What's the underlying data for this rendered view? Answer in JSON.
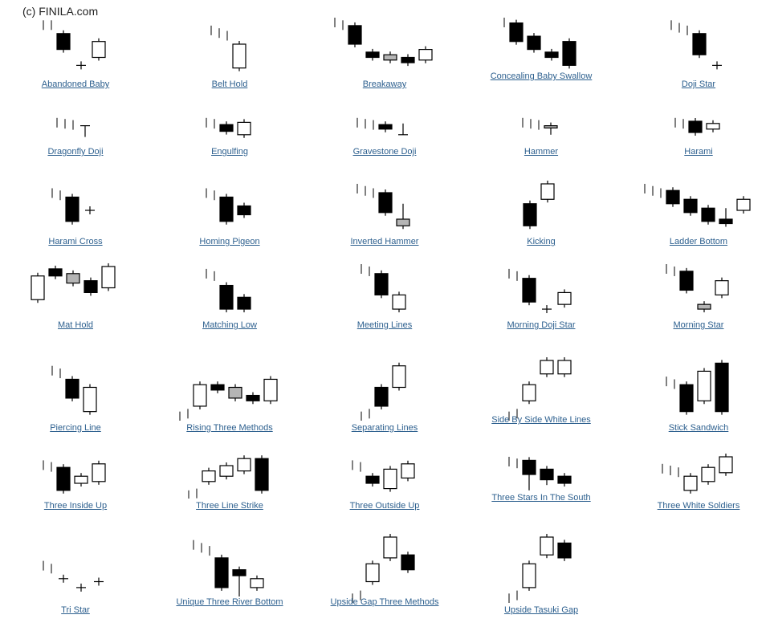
{
  "copyright": "(c) FINILA.com",
  "colors": {
    "bear": "#000000",
    "bull": "#ffffff",
    "neutral": "#b5b5b5",
    "trend": "#555555",
    "link": "#2c5f8e"
  },
  "patterns": [
    {
      "label": "Abandoned Baby",
      "candles": [
        {
          "t": "tick",
          "y": 0.05
        },
        {
          "t": "tick",
          "y": 0.05
        },
        {
          "t": "black",
          "o": 0.3,
          "c": 0.6
        },
        {
          "t": "doji",
          "o": 0.9
        },
        {
          "t": "white",
          "o": 0.75,
          "c": 0.45
        }
      ]
    },
    {
      "label": "Belt Hold",
      "candles": [
        {
          "t": "tick",
          "y": 0.15
        },
        {
          "t": "tick",
          "y": 0.2
        },
        {
          "t": "tick",
          "y": 0.25
        },
        {
          "t": "white",
          "o": 0.95,
          "c": 0.5
        }
      ]
    },
    {
      "label": "Breakaway",
      "candles": [
        {
          "t": "tick",
          "y": 0.0
        },
        {
          "t": "tick",
          "y": 0.05
        },
        {
          "t": "black",
          "o": 0.15,
          "c": 0.5
        },
        {
          "t": "black",
          "o": 0.65,
          "c": 0.75
        },
        {
          "t": "gray",
          "o": 0.7,
          "c": 0.8
        },
        {
          "t": "black",
          "o": 0.75,
          "c": 0.85
        },
        {
          "t": "white",
          "o": 0.8,
          "c": 0.6
        }
      ]
    },
    {
      "label": "Concealing Baby Swallow",
      "candles": [
        {
          "t": "tick",
          "y": 0.0
        },
        {
          "t": "black",
          "o": 0.1,
          "c": 0.45
        },
        {
          "t": "black",
          "o": 0.35,
          "c": 0.6
        },
        {
          "t": "black",
          "o": 0.65,
          "c": 0.75
        },
        {
          "t": "black",
          "o": 0.45,
          "c": 0.9
        }
      ]
    },
    {
      "label": "Doji Star",
      "candles": [
        {
          "t": "tick",
          "y": 0.05
        },
        {
          "t": "tick",
          "y": 0.1
        },
        {
          "t": "tick",
          "y": 0.15
        },
        {
          "t": "black",
          "o": 0.3,
          "c": 0.7
        },
        {
          "t": "doji",
          "o": 0.9
        }
      ]
    },
    {
      "label": "Dragonfly Doji",
      "candles": [
        {
          "t": "tick",
          "y": 0.1
        },
        {
          "t": "tick",
          "y": 0.15
        },
        {
          "t": "tick",
          "y": 0.2
        },
        {
          "t": "dragonfly",
          "o": 0.45
        }
      ]
    },
    {
      "label": "Engulfing",
      "candles": [
        {
          "t": "tick",
          "y": 0.1
        },
        {
          "t": "tick",
          "y": 0.15
        },
        {
          "t": "black",
          "o": 0.4,
          "c": 0.7
        },
        {
          "t": "white",
          "o": 0.85,
          "c": 0.3
        }
      ]
    },
    {
      "label": "Gravestone Doji",
      "candles": [
        {
          "t": "tick",
          "y": 0.1
        },
        {
          "t": "tick",
          "y": 0.15
        },
        {
          "t": "tick",
          "y": 0.2
        },
        {
          "t": "black",
          "o": 0.4,
          "c": 0.6
        },
        {
          "t": "gravestone",
          "o": 0.85
        }
      ]
    },
    {
      "label": "Hammer",
      "candles": [
        {
          "t": "tick",
          "y": 0.1
        },
        {
          "t": "tick",
          "y": 0.15
        },
        {
          "t": "tick",
          "y": 0.2
        },
        {
          "t": "gray",
          "o": 0.45,
          "c": 0.55,
          "lw": 0.85
        }
      ]
    },
    {
      "label": "Harami",
      "candles": [
        {
          "t": "tick",
          "y": 0.1
        },
        {
          "t": "tick",
          "y": 0.15
        },
        {
          "t": "black",
          "o": 0.25,
          "c": 0.75
        },
        {
          "t": "white",
          "o": 0.6,
          "c": 0.35
        }
      ]
    },
    {
      "label": "Harami Cross",
      "candles": [
        {
          "t": "tick",
          "y": 0.1
        },
        {
          "t": "tick",
          "y": 0.15
        },
        {
          "t": "black",
          "o": 0.3,
          "c": 0.85
        },
        {
          "t": "doji",
          "o": 0.6
        }
      ]
    },
    {
      "label": "Homing Pigeon",
      "candles": [
        {
          "t": "tick",
          "y": 0.1
        },
        {
          "t": "tick",
          "y": 0.15
        },
        {
          "t": "black",
          "o": 0.3,
          "c": 0.85
        },
        {
          "t": "black",
          "o": 0.5,
          "c": 0.7
        }
      ]
    },
    {
      "label": "Inverted Hammer",
      "candles": [
        {
          "t": "tick",
          "y": 0.0
        },
        {
          "t": "tick",
          "y": 0.05
        },
        {
          "t": "tick",
          "y": 0.1
        },
        {
          "t": "black",
          "o": 0.2,
          "c": 0.65
        },
        {
          "t": "gray",
          "o": 0.8,
          "c": 0.95,
          "hi": 0.45
        }
      ]
    },
    {
      "label": "Kicking",
      "candles": [
        {
          "t": "black",
          "o": 0.45,
          "c": 0.95
        },
        {
          "t": "white",
          "o": 0.35,
          "c": 0.0
        }
      ]
    },
    {
      "label": "Ladder Bottom",
      "candles": [
        {
          "t": "tick",
          "y": 0.0
        },
        {
          "t": "tick",
          "y": 0.05
        },
        {
          "t": "tick",
          "y": 0.1
        },
        {
          "t": "black",
          "o": 0.15,
          "c": 0.45
        },
        {
          "t": "black",
          "o": 0.35,
          "c": 0.65
        },
        {
          "t": "black",
          "o": 0.55,
          "c": 0.85
        },
        {
          "t": "black",
          "o": 0.8,
          "c": 0.9,
          "hi": 0.55
        },
        {
          "t": "white",
          "o": 0.6,
          "c": 0.35
        }
      ]
    },
    {
      "label": "Mat Hold",
      "candles": [
        {
          "t": "white",
          "o": 0.75,
          "c": 0.25
        },
        {
          "t": "black",
          "o": 0.1,
          "c": 0.25
        },
        {
          "t": "gray",
          "o": 0.2,
          "c": 0.4
        },
        {
          "t": "black",
          "o": 0.35,
          "c": 0.6
        },
        {
          "t": "white",
          "o": 0.5,
          "c": 0.05
        }
      ]
    },
    {
      "label": "Matching Low",
      "candles": [
        {
          "t": "tick",
          "y": 0.1
        },
        {
          "t": "tick",
          "y": 0.15
        },
        {
          "t": "black",
          "o": 0.45,
          "c": 0.95
        },
        {
          "t": "black",
          "o": 0.7,
          "c": 0.95
        }
      ]
    },
    {
      "label": "Meeting Lines",
      "candles": [
        {
          "t": "tick",
          "y": 0.0
        },
        {
          "t": "tick",
          "y": 0.05
        },
        {
          "t": "black",
          "o": 0.2,
          "c": 0.65
        },
        {
          "t": "white",
          "o": 0.95,
          "c": 0.65
        }
      ]
    },
    {
      "label": "Morning Doji Star",
      "candles": [
        {
          "t": "tick",
          "y": 0.1
        },
        {
          "t": "tick",
          "y": 0.15
        },
        {
          "t": "black",
          "o": 0.3,
          "c": 0.8
        },
        {
          "t": "doji",
          "o": 0.95
        },
        {
          "t": "white",
          "o": 0.85,
          "c": 0.6
        }
      ]
    },
    {
      "label": "Morning Star",
      "candles": [
        {
          "t": "tick",
          "y": 0.0
        },
        {
          "t": "tick",
          "y": 0.05
        },
        {
          "t": "black",
          "o": 0.15,
          "c": 0.55
        },
        {
          "t": "gray",
          "o": 0.85,
          "c": 0.95
        },
        {
          "t": "white",
          "o": 0.65,
          "c": 0.35
        }
      ]
    },
    {
      "label": "Piercing Line",
      "candles": [
        {
          "t": "tick",
          "y": 0.1
        },
        {
          "t": "tick",
          "y": 0.15
        },
        {
          "t": "black",
          "o": 0.35,
          "c": 0.7
        },
        {
          "t": "white",
          "o": 0.95,
          "c": 0.5
        }
      ]
    },
    {
      "label": "Rising Three Methods",
      "candles": [
        {
          "t": "tick",
          "y": 0.95
        },
        {
          "t": "tick",
          "y": 0.9
        },
        {
          "t": "white",
          "o": 0.85,
          "c": 0.45
        },
        {
          "t": "black",
          "o": 0.45,
          "c": 0.55
        },
        {
          "t": "gray",
          "o": 0.5,
          "c": 0.7
        },
        {
          "t": "black",
          "o": 0.65,
          "c": 0.75
        },
        {
          "t": "white",
          "o": 0.75,
          "c": 0.35
        }
      ]
    },
    {
      "label": "Separating Lines",
      "candles": [
        {
          "t": "tick",
          "y": 0.95
        },
        {
          "t": "tick",
          "y": 0.9
        },
        {
          "t": "black",
          "o": 0.5,
          "c": 0.85
        },
        {
          "t": "white",
          "o": 0.5,
          "c": 0.1
        }
      ]
    },
    {
      "label": "Side By Side White Lines",
      "candles": [
        {
          "t": "tick",
          "y": 0.95
        },
        {
          "t": "tick",
          "y": 0.9
        },
        {
          "t": "white",
          "o": 0.75,
          "c": 0.45
        },
        {
          "t": "white",
          "o": 0.25,
          "c": 0.0
        },
        {
          "t": "white",
          "o": 0.25,
          "c": 0.0
        }
      ]
    },
    {
      "label": "Stick Sandwich",
      "candles": [
        {
          "t": "tick",
          "y": 0.3
        },
        {
          "t": "tick",
          "y": 0.35
        },
        {
          "t": "black",
          "o": 0.45,
          "c": 0.95
        },
        {
          "t": "white",
          "o": 0.75,
          "c": 0.2
        },
        {
          "t": "black",
          "o": 0.05,
          "c": 0.95
        }
      ]
    },
    {
      "label": "Three Inside Up",
      "candles": [
        {
          "t": "tick",
          "y": 0.1
        },
        {
          "t": "tick",
          "y": 0.15
        },
        {
          "t": "black",
          "o": 0.3,
          "c": 0.95
        },
        {
          "t": "white",
          "o": 0.75,
          "c": 0.55
        },
        {
          "t": "white",
          "o": 0.7,
          "c": 0.2
        }
      ]
    },
    {
      "label": "Three Line Strike",
      "candles": [
        {
          "t": "tick",
          "y": 0.95
        },
        {
          "t": "tick",
          "y": 0.9
        },
        {
          "t": "white",
          "o": 0.7,
          "c": 0.4
        },
        {
          "t": "white",
          "o": 0.55,
          "c": 0.25
        },
        {
          "t": "white",
          "o": 0.4,
          "c": 0.05
        },
        {
          "t": "black",
          "o": 0.05,
          "c": 0.95
        }
      ]
    },
    {
      "label": "Three Outside Up",
      "candles": [
        {
          "t": "tick",
          "y": 0.1
        },
        {
          "t": "tick",
          "y": 0.15
        },
        {
          "t": "black",
          "o": 0.55,
          "c": 0.75
        },
        {
          "t": "white",
          "o": 0.9,
          "c": 0.35
        },
        {
          "t": "white",
          "o": 0.6,
          "c": 0.2
        }
      ]
    },
    {
      "label": "Three Stars In The South",
      "candles": [
        {
          "t": "tick",
          "y": 0.0
        },
        {
          "t": "tick",
          "y": 0.05
        },
        {
          "t": "black",
          "o": 0.1,
          "c": 0.5,
          "lw": 0.95
        },
        {
          "t": "black",
          "o": 0.35,
          "c": 0.65,
          "lw": 0.8
        },
        {
          "t": "black",
          "o": 0.55,
          "c": 0.75
        }
      ]
    },
    {
      "label": "Three White Soldiers",
      "candles": [
        {
          "t": "tick",
          "y": 0.2
        },
        {
          "t": "tick",
          "y": 0.25
        },
        {
          "t": "tick",
          "y": 0.3
        },
        {
          "t": "white",
          "o": 0.95,
          "c": 0.55
        },
        {
          "t": "white",
          "o": 0.7,
          "c": 0.3
        },
        {
          "t": "white",
          "o": 0.45,
          "c": 0.0
        }
      ]
    },
    {
      "label": "Tri Star",
      "candles": [
        {
          "t": "tick",
          "y": 0.4
        },
        {
          "t": "tick",
          "y": 0.45
        },
        {
          "t": "doji",
          "o": 0.7
        },
        {
          "t": "doji",
          "o": 0.85
        },
        {
          "t": "doji",
          "o": 0.75
        }
      ]
    },
    {
      "label": "Unique Three River Bottom",
      "candles": [
        {
          "t": "tick",
          "y": 0.05
        },
        {
          "t": "tick",
          "y": 0.1
        },
        {
          "t": "tick",
          "y": 0.15
        },
        {
          "t": "black",
          "o": 0.35,
          "c": 0.85
        },
        {
          "t": "black",
          "o": 0.55,
          "c": 0.65,
          "lw": 1.0
        },
        {
          "t": "white",
          "o": 0.85,
          "c": 0.7
        }
      ]
    },
    {
      "label": "Upside Gap Three Methods",
      "candles": [
        {
          "t": "tick",
          "y": 0.95
        },
        {
          "t": "tick",
          "y": 0.9
        },
        {
          "t": "white",
          "o": 0.75,
          "c": 0.45
        },
        {
          "t": "white",
          "o": 0.35,
          "c": 0.0
        },
        {
          "t": "black",
          "o": 0.3,
          "c": 0.55
        }
      ]
    },
    {
      "label": "Upside Tasuki Gap",
      "candles": [
        {
          "t": "tick",
          "y": 0.95
        },
        {
          "t": "tick",
          "y": 0.9
        },
        {
          "t": "white",
          "o": 0.85,
          "c": 0.45
        },
        {
          "t": "white",
          "o": 0.3,
          "c": 0.0
        },
        {
          "t": "black",
          "o": 0.1,
          "c": 0.35
        }
      ]
    }
  ]
}
